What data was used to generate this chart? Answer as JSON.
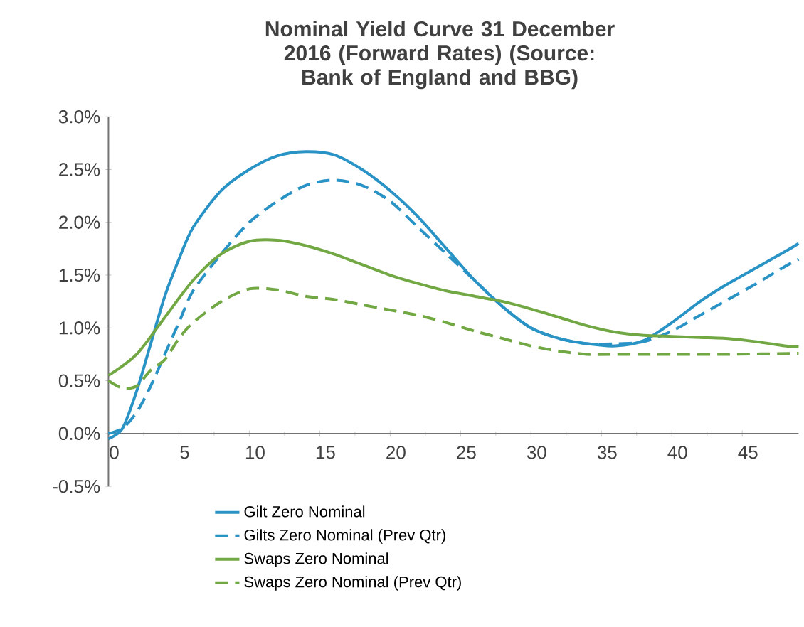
{
  "chart_data": {
    "type": "line",
    "title": "Nominal Yield Curve 31 December 2016 (Forward Rates) (Source: Bank of England and BBG)",
    "xlim": [
      0,
      49
    ],
    "xticks": [
      0,
      5,
      10,
      15,
      20,
      25,
      30,
      35,
      40,
      45
    ],
    "ylim": [
      -0.5,
      3.0
    ],
    "yticks": [
      {
        "value": -0.5,
        "label": "-0.5%"
      },
      {
        "value": 0,
        "label": "0.0%"
      },
      {
        "value": 0.5,
        "label": "0.5%"
      },
      {
        "value": 1.0,
        "label": "1.0%"
      },
      {
        "value": 1.5,
        "label": "1.5%"
      },
      {
        "value": 2.0,
        "label": "2.0%"
      },
      {
        "value": 2.5,
        "label": "2.5%"
      },
      {
        "value": 3.0,
        "label": "3.0%"
      }
    ],
    "grid": false,
    "legend": "bottom",
    "marker": "none",
    "series": [
      {
        "name": "Gilt Zero Nominal",
        "color": "#2a93c5",
        "line_style": "solid",
        "x": [
          0,
          1,
          2,
          3,
          4,
          5,
          6,
          8,
          10,
          12,
          14,
          16,
          18,
          20,
          22,
          24,
          26,
          28,
          30,
          32,
          34,
          36,
          38,
          40,
          42,
          44,
          46,
          48,
          49
        ],
        "values": [
          -0.05,
          0.05,
          0.4,
          0.85,
          1.3,
          1.65,
          1.95,
          2.3,
          2.5,
          2.63,
          2.67,
          2.64,
          2.5,
          2.3,
          2.05,
          1.75,
          1.45,
          1.2,
          1.0,
          0.9,
          0.85,
          0.83,
          0.88,
          1.05,
          1.25,
          1.42,
          1.57,
          1.72,
          1.8
        ]
      },
      {
        "name": "Gilts Zero Nominal (Prev Qtr)",
        "color": "#2a93c5",
        "line_style": "dashed",
        "x": [
          0,
          1,
          2,
          3,
          4,
          5,
          6,
          8,
          10,
          12,
          14,
          16,
          18,
          20,
          22,
          24,
          26,
          28,
          30,
          32,
          34,
          36,
          38,
          40,
          42,
          44,
          46,
          48,
          49
        ],
        "values": [
          0.0,
          0.05,
          0.2,
          0.45,
          0.75,
          1.05,
          1.35,
          1.7,
          2.0,
          2.2,
          2.35,
          2.4,
          2.35,
          2.2,
          1.95,
          1.7,
          1.45,
          1.2,
          1.0,
          0.9,
          0.85,
          0.85,
          0.87,
          0.97,
          1.12,
          1.27,
          1.42,
          1.58,
          1.65
        ]
      },
      {
        "name": "Swaps Zero Nominal",
        "color": "#72a843",
        "line_style": "solid",
        "x": [
          0,
          2,
          4,
          6,
          8,
          10,
          12,
          14,
          16,
          18,
          20,
          22,
          24,
          26,
          28,
          30,
          32,
          34,
          36,
          38,
          40,
          42,
          44,
          46,
          48,
          49
        ],
        "values": [
          0.55,
          0.75,
          1.1,
          1.45,
          1.7,
          1.82,
          1.83,
          1.78,
          1.7,
          1.6,
          1.5,
          1.42,
          1.35,
          1.3,
          1.25,
          1.18,
          1.1,
          1.02,
          0.96,
          0.93,
          0.92,
          0.91,
          0.9,
          0.87,
          0.83,
          0.82
        ]
      },
      {
        "name": "Swaps Zero Nominal (Prev Qtr)",
        "color": "#72a843",
        "line_style": "dashed",
        "x": [
          0,
          1,
          2,
          3,
          4,
          5,
          6,
          8,
          10,
          12,
          14,
          16,
          18,
          20,
          22,
          24,
          26,
          28,
          30,
          32,
          34,
          36,
          40,
          44,
          49
        ],
        "values": [
          0.5,
          0.43,
          0.45,
          0.6,
          0.7,
          0.9,
          1.05,
          1.25,
          1.37,
          1.36,
          1.3,
          1.27,
          1.22,
          1.17,
          1.12,
          1.05,
          0.97,
          0.9,
          0.83,
          0.78,
          0.75,
          0.75,
          0.75,
          0.75,
          0.76
        ]
      }
    ]
  }
}
